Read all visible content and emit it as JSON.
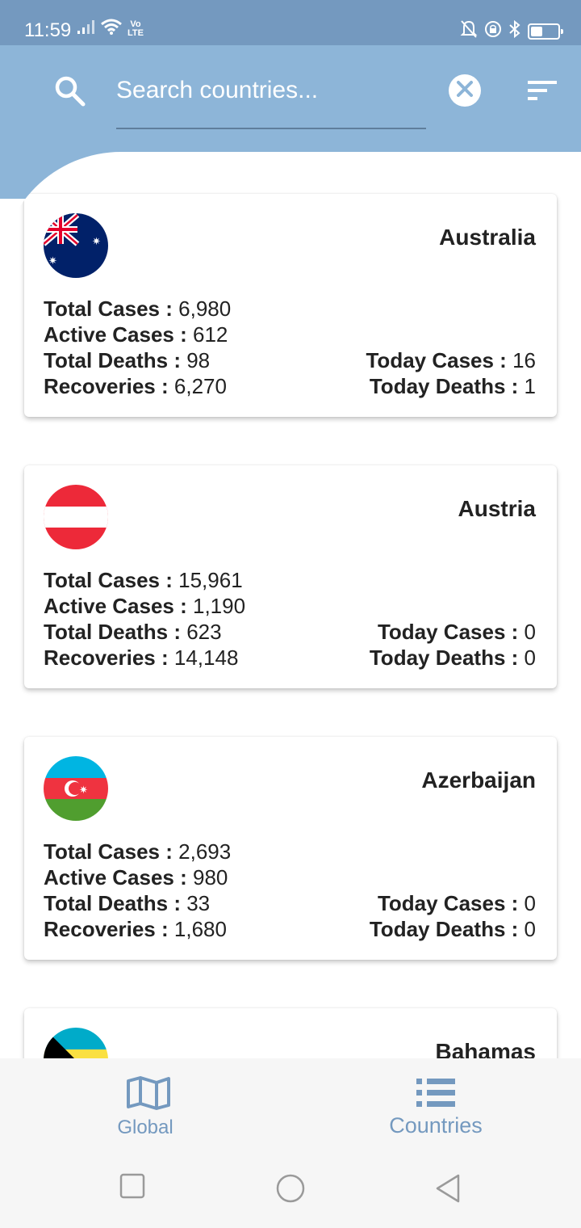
{
  "status_bar": {
    "time": "11:59",
    "volte_label": "Vo\nLTE",
    "battery_level": 0.45
  },
  "search": {
    "placeholder": "Search countries...",
    "value": ""
  },
  "countries": [
    {
      "name": "Australia",
      "flag": "australia-flag",
      "total_cases_label": "Total Cases :",
      "total_cases": "6,980",
      "active_cases_label": "Active Cases :",
      "active_cases": "612",
      "total_deaths_label": "Total Deaths :",
      "total_deaths": "98",
      "recoveries_label": "Recoveries :",
      "recoveries": "6,270",
      "today_cases_label": "Today Cases :",
      "today_cases": "16",
      "today_deaths_label": "Today Deaths :",
      "today_deaths": "1"
    },
    {
      "name": "Austria",
      "flag": "austria-flag",
      "total_cases_label": "Total Cases :",
      "total_cases": "15,961",
      "active_cases_label": "Active Cases :",
      "active_cases": "1,190",
      "total_deaths_label": "Total Deaths :",
      "total_deaths": "623",
      "recoveries_label": "Recoveries :",
      "recoveries": "14,148",
      "today_cases_label": "Today Cases :",
      "today_cases": "0",
      "today_deaths_label": "Today Deaths :",
      "today_deaths": "0"
    },
    {
      "name": "Azerbaijan",
      "flag": "azerbaijan-flag",
      "total_cases_label": "Total Cases :",
      "total_cases": "2,693",
      "active_cases_label": "Active Cases :",
      "active_cases": "980",
      "total_deaths_label": "Total Deaths :",
      "total_deaths": "33",
      "recoveries_label": "Recoveries :",
      "recoveries": "1,680",
      "today_cases_label": "Today Cases :",
      "today_cases": "0",
      "today_deaths_label": "Today Deaths :",
      "today_deaths": "0"
    },
    {
      "name": "Bahamas",
      "flag": "bahamas-flag"
    }
  ],
  "bottom_nav": {
    "global_label": "Global",
    "countries_label": "Countries"
  },
  "colors": {
    "status_bar": "#7499bf",
    "app_bar": "#8db5d8",
    "accent": "#7499bf",
    "text": "#222222"
  }
}
